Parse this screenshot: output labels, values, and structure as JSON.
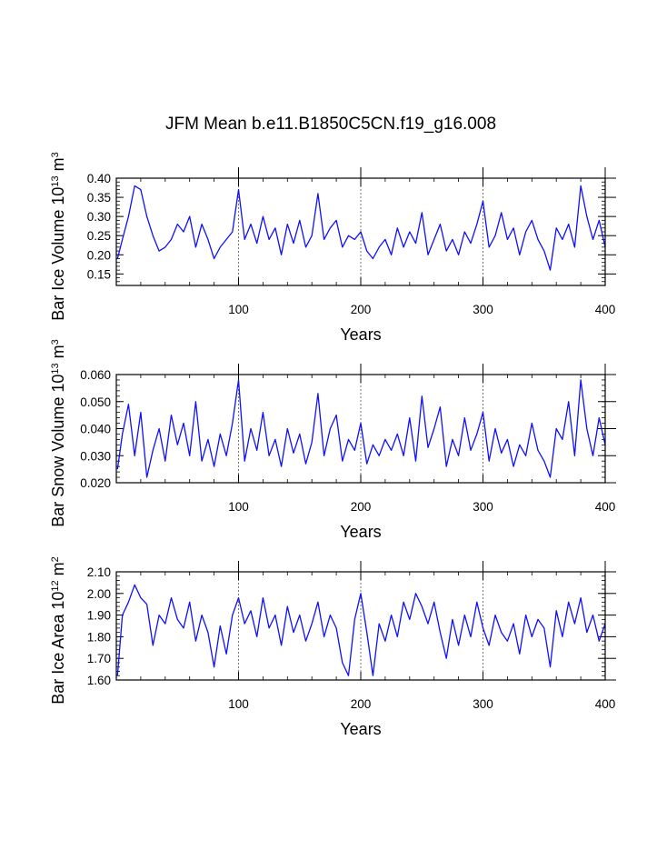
{
  "title": "JFM Mean b.e11.B1850C5CN.f19_g16.008",
  "chart_data": [
    {
      "type": "line",
      "ylabel": "Bar Ice Volume 10",
      "ylabel_exp": "13",
      "ylabel_unit": " m",
      "ylabel_unit_exp": "3",
      "xlabel": "Years",
      "xlim": [
        0,
        400
      ],
      "ylim": [
        0.12,
        0.4
      ],
      "xticks": [
        100,
        200,
        300,
        400
      ],
      "xtick_labels": [
        "100",
        "200",
        "300",
        "400"
      ],
      "yticks": [
        0.15,
        0.2,
        0.25,
        0.3,
        0.35,
        0.4
      ],
      "ytick_labels": [
        "0.15",
        "0.20",
        "0.25",
        "0.30",
        "0.35",
        "0.40"
      ],
      "reference_lines_x": [
        100,
        200,
        300
      ],
      "color": "#1010ff",
      "x": [
        1,
        5,
        10,
        15,
        20,
        25,
        30,
        35,
        40,
        45,
        50,
        55,
        60,
        65,
        70,
        75,
        80,
        85,
        90,
        95,
        100,
        105,
        110,
        115,
        120,
        125,
        130,
        135,
        140,
        145,
        150,
        155,
        160,
        165,
        170,
        175,
        180,
        185,
        190,
        195,
        200,
        205,
        210,
        215,
        220,
        225,
        230,
        235,
        240,
        245,
        250,
        255,
        260,
        265,
        270,
        275,
        280,
        285,
        290,
        295,
        300,
        305,
        310,
        315,
        320,
        325,
        330,
        335,
        340,
        345,
        350,
        355,
        360,
        365,
        370,
        375,
        380,
        385,
        390,
        395,
        400
      ],
      "values": [
        0.19,
        0.24,
        0.3,
        0.38,
        0.37,
        0.3,
        0.25,
        0.21,
        0.22,
        0.24,
        0.28,
        0.26,
        0.3,
        0.22,
        0.28,
        0.24,
        0.19,
        0.22,
        0.24,
        0.26,
        0.37,
        0.24,
        0.28,
        0.23,
        0.3,
        0.24,
        0.27,
        0.2,
        0.28,
        0.23,
        0.29,
        0.22,
        0.25,
        0.36,
        0.24,
        0.27,
        0.29,
        0.22,
        0.25,
        0.24,
        0.26,
        0.21,
        0.19,
        0.22,
        0.24,
        0.2,
        0.27,
        0.22,
        0.26,
        0.23,
        0.31,
        0.2,
        0.24,
        0.28,
        0.21,
        0.24,
        0.2,
        0.26,
        0.23,
        0.28,
        0.34,
        0.22,
        0.25,
        0.31,
        0.24,
        0.27,
        0.2,
        0.26,
        0.29,
        0.24,
        0.21,
        0.16,
        0.27,
        0.24,
        0.28,
        0.22,
        0.38,
        0.3,
        0.24,
        0.29,
        0.22
      ]
    },
    {
      "type": "line",
      "ylabel": "Bar Snow Volume 10",
      "ylabel_exp": "13",
      "ylabel_unit": " m",
      "ylabel_unit_exp": "3",
      "xlabel": "Years",
      "xlim": [
        0,
        400
      ],
      "ylim": [
        0.02,
        0.06
      ],
      "xticks": [
        100,
        200,
        300,
        400
      ],
      "xtick_labels": [
        "100",
        "200",
        "300",
        "400"
      ],
      "yticks": [
        0.02,
        0.03,
        0.04,
        0.05,
        0.06
      ],
      "ytick_labels": [
        "0.020",
        "0.030",
        "0.040",
        "0.050",
        "0.060"
      ],
      "reference_lines_x": [
        100,
        200,
        300
      ],
      "color": "#1010ff",
      "x": [
        1,
        5,
        10,
        15,
        20,
        25,
        30,
        35,
        40,
        45,
        50,
        55,
        60,
        65,
        70,
        75,
        80,
        85,
        90,
        95,
        100,
        105,
        110,
        115,
        120,
        125,
        130,
        135,
        140,
        145,
        150,
        155,
        160,
        165,
        170,
        175,
        180,
        185,
        190,
        195,
        200,
        205,
        210,
        215,
        220,
        225,
        230,
        235,
        240,
        245,
        250,
        255,
        260,
        265,
        270,
        275,
        280,
        285,
        290,
        295,
        300,
        305,
        310,
        315,
        320,
        325,
        330,
        335,
        340,
        345,
        350,
        355,
        360,
        365,
        370,
        375,
        380,
        385,
        390,
        395,
        400
      ],
      "values": [
        0.025,
        0.038,
        0.049,
        0.03,
        0.046,
        0.022,
        0.032,
        0.04,
        0.028,
        0.045,
        0.034,
        0.042,
        0.03,
        0.05,
        0.028,
        0.036,
        0.026,
        0.038,
        0.03,
        0.042,
        0.058,
        0.028,
        0.04,
        0.032,
        0.046,
        0.03,
        0.036,
        0.026,
        0.04,
        0.031,
        0.038,
        0.027,
        0.035,
        0.053,
        0.03,
        0.04,
        0.045,
        0.028,
        0.036,
        0.032,
        0.042,
        0.027,
        0.034,
        0.03,
        0.036,
        0.032,
        0.038,
        0.03,
        0.044,
        0.028,
        0.052,
        0.033,
        0.04,
        0.048,
        0.026,
        0.036,
        0.03,
        0.044,
        0.032,
        0.038,
        0.046,
        0.028,
        0.04,
        0.031,
        0.036,
        0.026,
        0.034,
        0.03,
        0.042,
        0.032,
        0.028,
        0.022,
        0.04,
        0.036,
        0.05,
        0.03,
        0.058,
        0.04,
        0.03,
        0.044,
        0.034
      ]
    },
    {
      "type": "line",
      "ylabel": "Bar Ice Area 10",
      "ylabel_exp": "12",
      "ylabel_unit": " m",
      "ylabel_unit_exp": "2",
      "xlabel": "Years",
      "xlim": [
        0,
        400
      ],
      "ylim": [
        1.6,
        2.1
      ],
      "xticks": [
        100,
        200,
        300,
        400
      ],
      "xtick_labels": [
        "100",
        "200",
        "300",
        "400"
      ],
      "yticks": [
        1.6,
        1.7,
        1.8,
        1.9,
        2.0,
        2.1
      ],
      "ytick_labels": [
        "1.60",
        "1.70",
        "1.80",
        "1.90",
        "2.00",
        "2.10"
      ],
      "reference_lines_x": [
        100,
        200,
        300
      ],
      "color": "#1010ff",
      "x": [
        1,
        5,
        10,
        15,
        20,
        25,
        30,
        35,
        40,
        45,
        50,
        55,
        60,
        65,
        70,
        75,
        80,
        85,
        90,
        95,
        100,
        105,
        110,
        115,
        120,
        125,
        130,
        135,
        140,
        145,
        150,
        155,
        160,
        165,
        170,
        175,
        180,
        185,
        190,
        195,
        200,
        205,
        210,
        215,
        220,
        225,
        230,
        235,
        240,
        245,
        250,
        255,
        260,
        265,
        270,
        275,
        280,
        285,
        290,
        295,
        300,
        305,
        310,
        315,
        320,
        325,
        330,
        335,
        340,
        345,
        350,
        355,
        360,
        365,
        370,
        375,
        380,
        385,
        390,
        395,
        400
      ],
      "values": [
        1.62,
        1.9,
        1.96,
        2.04,
        1.98,
        1.95,
        1.76,
        1.9,
        1.86,
        1.98,
        1.88,
        1.84,
        1.96,
        1.78,
        1.9,
        1.82,
        1.66,
        1.85,
        1.72,
        1.9,
        1.98,
        1.86,
        1.92,
        1.8,
        1.98,
        1.84,
        1.9,
        1.76,
        1.94,
        1.82,
        1.9,
        1.78,
        1.86,
        1.96,
        1.8,
        1.9,
        1.84,
        1.68,
        1.62,
        1.88,
        2.0,
        1.82,
        1.62,
        1.86,
        1.78,
        1.9,
        1.8,
        1.96,
        1.88,
        2.0,
        1.94,
        1.86,
        1.96,
        1.82,
        1.7,
        1.88,
        1.76,
        1.9,
        1.8,
        1.96,
        1.84,
        1.76,
        1.9,
        1.82,
        1.78,
        1.86,
        1.72,
        1.9,
        1.8,
        1.88,
        1.84,
        1.66,
        1.92,
        1.8,
        1.96,
        1.86,
        1.98,
        1.82,
        1.9,
        1.78,
        1.86
      ]
    }
  ]
}
